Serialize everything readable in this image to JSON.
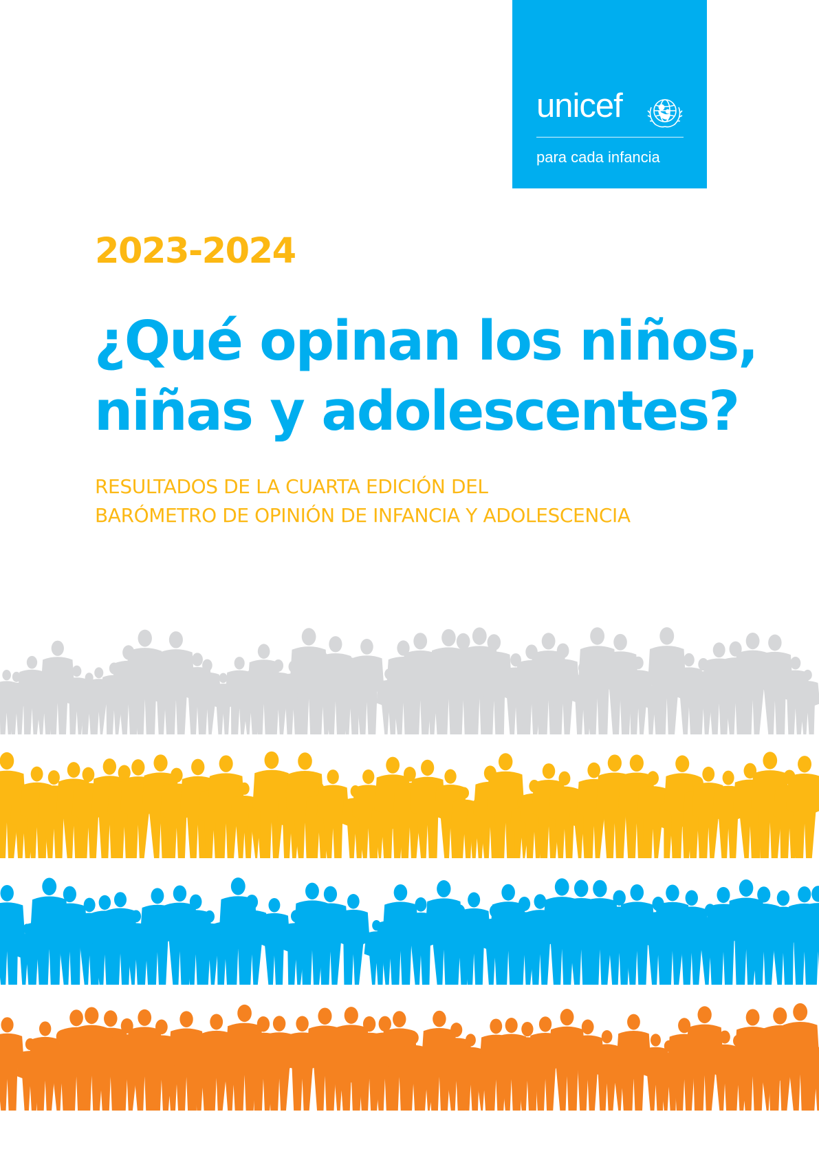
{
  "logo": {
    "brand": "unicef",
    "tagline": "para cada infancia",
    "background_color": "#00aeef",
    "emblem_icon": "unicef-emblem-icon"
  },
  "cover": {
    "years": "2023-2024",
    "title_lines": [
      "¿Qué opinan los niños,",
      "niñas y adolescentes?"
    ],
    "subtitle_lines": [
      "RESULTADOS DE LA CUARTA EDICIÓN DEL",
      "BARÓMETRO DE OPINIÓN DE INFANCIA Y ADOLESCENCIA"
    ]
  },
  "colors": {
    "title": "#00aeef",
    "accent_yellow": "#fcb813",
    "crowd_grey": "#d6d7d9",
    "crowd_yellow": "#fcb813",
    "crowd_blue": "#00aeef",
    "crowd_orange": "#f58220"
  },
  "illustration": {
    "crowd_rows": [
      {
        "name": "grey",
        "color": "#d6d7d9"
      },
      {
        "name": "yellow",
        "color": "#fcb813"
      },
      {
        "name": "blue",
        "color": "#00aeef"
      },
      {
        "name": "orange",
        "color": "#f58220"
      }
    ]
  }
}
